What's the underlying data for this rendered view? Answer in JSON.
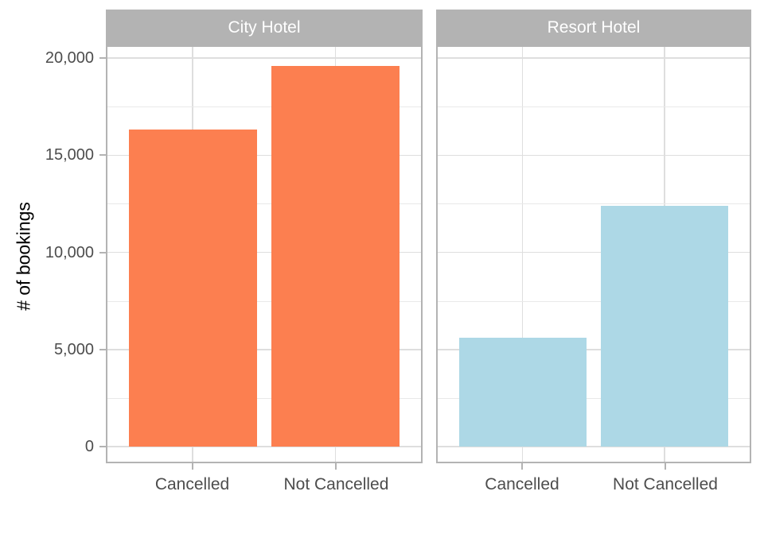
{
  "chart_data": {
    "type": "bar",
    "title": "",
    "xlabel": "",
    "ylabel": "# of bookings",
    "categories": [
      "Cancelled",
      "Not Cancelled"
    ],
    "panels": [
      {
        "title": "City Hotel",
        "bar_color": "#FC7F50",
        "values": [
          16300,
          19600
        ]
      },
      {
        "title": "Resort Hotel",
        "bar_color": "#ADD8E6",
        "values": [
          5600,
          12400
        ]
      }
    ],
    "y_ticks": [
      0,
      5000,
      10000,
      15000,
      20000
    ],
    "y_tick_labels": [
      "0",
      "5,000",
      "10,000",
      "15,000",
      "20,000"
    ],
    "y_minor_ticks": [
      2500,
      7500,
      12500,
      17500
    ],
    "ylim": [
      0,
      20600
    ],
    "grid": true,
    "legend_position": "none",
    "theme": {
      "strip_bg": "#B3B3B3",
      "strip_text": "#FFFFFF",
      "panel_bg": "#FFFFFF",
      "panel_border": "#B3B3B3",
      "grid_major": "#DEDEDE",
      "grid_minor": "#E9E9E9",
      "axis_text": "#4D4D4D",
      "axis_title": "#000000",
      "tick_color": "#B3B3B3"
    }
  }
}
